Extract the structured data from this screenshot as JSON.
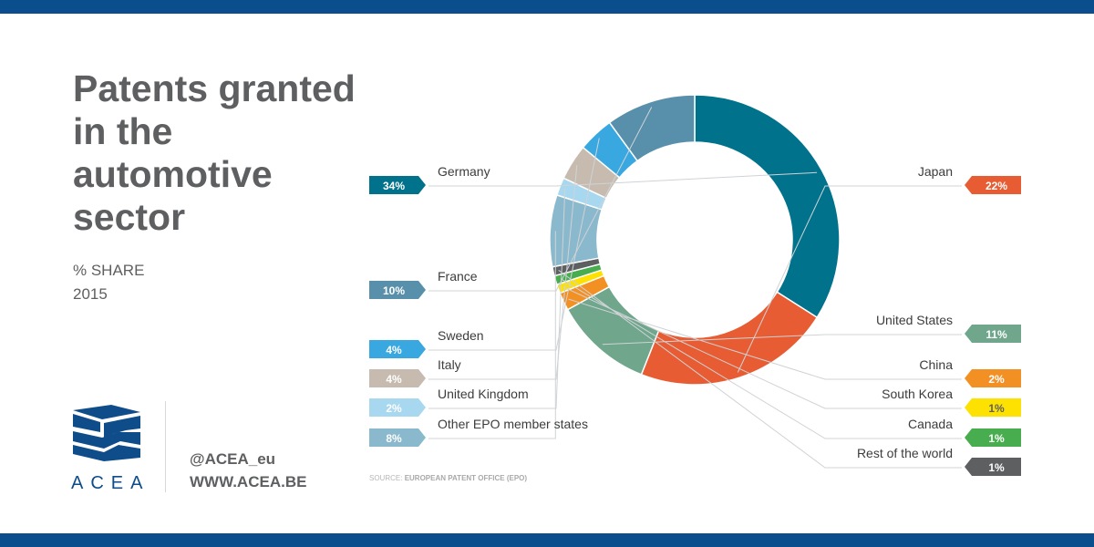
{
  "title": "Patents granted in the automotive sector",
  "subtitle": {
    "line1": "% SHARE",
    "line2": "2015"
  },
  "brand": {
    "logo_text": "ACEA",
    "twitter": "@ACEA_eu",
    "website": "WWW.ACEA.BE",
    "logo_color": "#0f4c8a"
  },
  "source": {
    "prefix": "SOURCE:",
    "text": "EUROPEAN PATENT OFFICE (EPO)"
  },
  "chart_data": {
    "type": "pie",
    "variant": "donut",
    "title": "Patents granted in the automotive sector",
    "unit": "%",
    "slices": [
      {
        "label": "Germany",
        "value": 34,
        "display": "34%",
        "color": "#00728c",
        "side": "left"
      },
      {
        "label": "Japan",
        "value": 22,
        "display": "22%",
        "color": "#e85c33",
        "side": "right"
      },
      {
        "label": "United States",
        "value": 11,
        "display": "11%",
        "color": "#6fa68c",
        "side": "right"
      },
      {
        "label": "China",
        "value": 2,
        "display": "2%",
        "color": "#f39024",
        "side": "right"
      },
      {
        "label": "South Korea",
        "value": 1,
        "display": "1%",
        "color": "#fde100",
        "side": "right"
      },
      {
        "label": "Canada",
        "value": 1,
        "display": "1%",
        "color": "#48ad4f",
        "side": "right"
      },
      {
        "label": "Rest of the world",
        "value": 1,
        "display": "1%",
        "color": "#5e5f61",
        "side": "right"
      },
      {
        "label": "Other EPO member states",
        "value": 8,
        "display": "8%",
        "color": "#8ab8cc",
        "side": "left"
      },
      {
        "label": "United Kingdom",
        "value": 2,
        "display": "2%",
        "color": "#a8d8ef",
        "side": "left"
      },
      {
        "label": "Italy",
        "value": 4,
        "display": "4%",
        "color": "#c7bbaf",
        "side": "left"
      },
      {
        "label": "Sweden",
        "value": 4,
        "display": "4%",
        "color": "#3aa8e0",
        "side": "left"
      },
      {
        "label": "France",
        "value": 10,
        "display": "10%",
        "color": "#5890ab",
        "side": "left"
      }
    ],
    "legend": "callouts-left-and-right",
    "start_angle_deg": -90
  }
}
